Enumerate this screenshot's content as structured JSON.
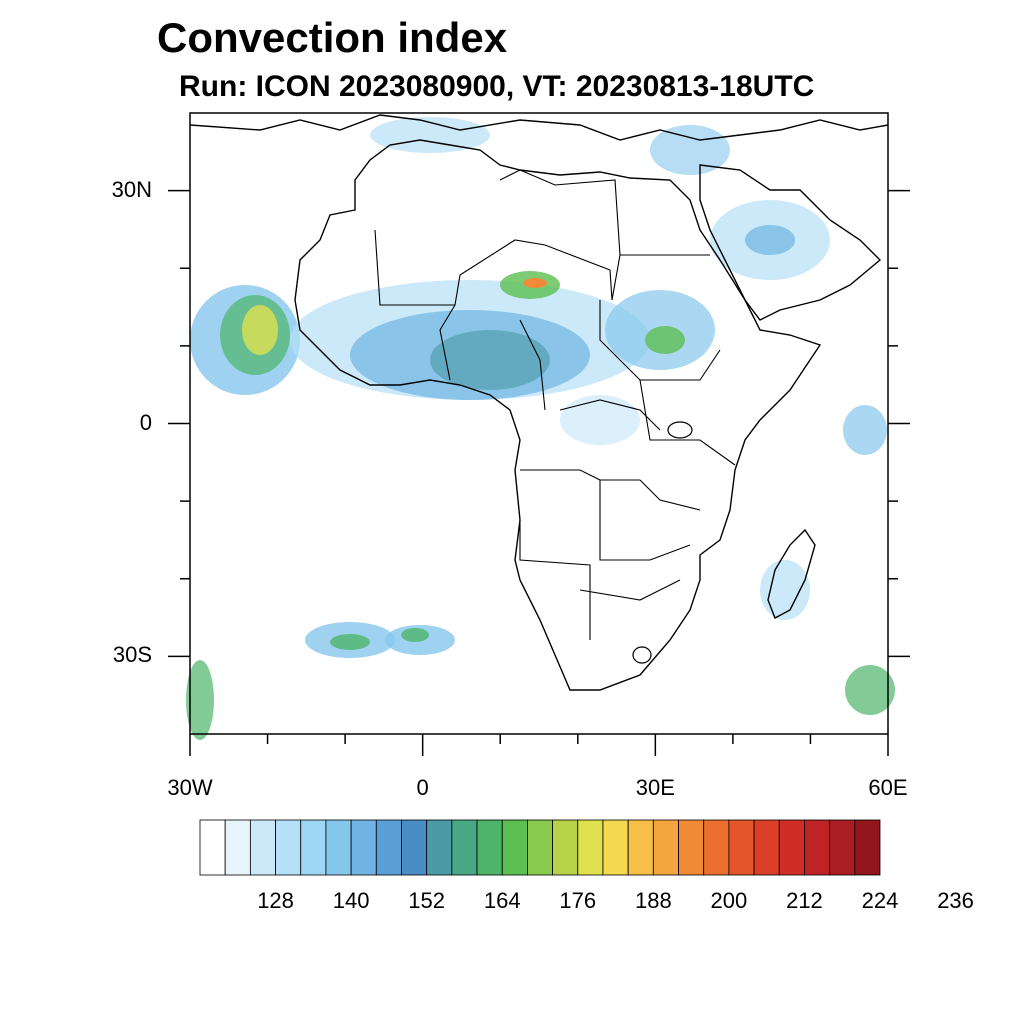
{
  "title": "Convection index",
  "subtitle": "Run: ICON 2023080900,  VT: 20230813-18UTC",
  "axes": {
    "lat_labels": [
      {
        "text": "30N",
        "value": 30
      },
      {
        "text": "0",
        "value": 0
      },
      {
        "text": "30S",
        "value": -30
      }
    ],
    "lon_labels": [
      {
        "text": "30W",
        "value": -30
      },
      {
        "text": "0",
        "value": 0
      },
      {
        "text": "30E",
        "value": 30
      },
      {
        "text": "60E",
        "value": 60
      }
    ],
    "extent": {
      "lon": [
        -30,
        60
      ],
      "lat": [
        -40,
        40
      ]
    }
  },
  "colorbar": {
    "colors": [
      "#ffffff",
      "#e8f4fc",
      "#cde9f9",
      "#b5e0f7",
      "#9ed6f5",
      "#86c7ec",
      "#6fb4e2",
      "#5a9fd6",
      "#4a8cc4",
      "#4a9aa7",
      "#48a884",
      "#4db56a",
      "#5dbf51",
      "#89c94b",
      "#b6d34a",
      "#dfe14d",
      "#f3d94d",
      "#f6bf47",
      "#f5a540",
      "#f18a37",
      "#ec6f2f",
      "#e45629",
      "#dc3f27",
      "#d02d27",
      "#be2326",
      "#a91d23",
      "#93161c"
    ],
    "labels": [
      "128",
      "140",
      "152",
      "164",
      "176",
      "188",
      "200",
      "212",
      "224",
      "236"
    ]
  }
}
